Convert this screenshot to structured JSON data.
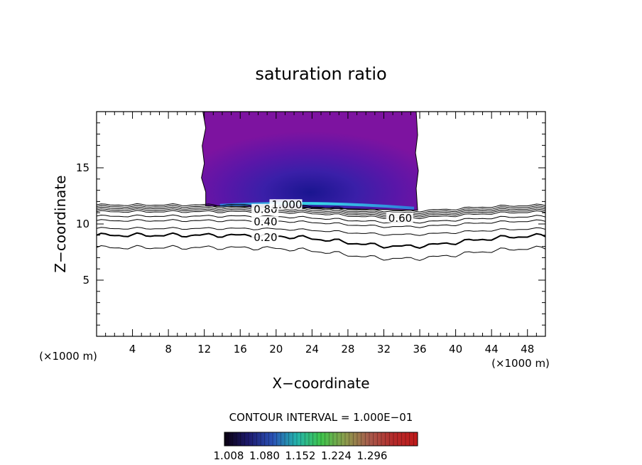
{
  "chart_data": {
    "type": "contour",
    "title": "saturation ratio",
    "xlabel": "X−coordinate",
    "ylabel": "Z−coordinate",
    "x_unit_left": "(×1000 m)",
    "x_unit_right": "(×1000 m)",
    "xlim": [
      0,
      50
    ],
    "ylim": [
      0,
      20
    ],
    "xticks": [
      4,
      8,
      12,
      16,
      20,
      24,
      28,
      32,
      36,
      40,
      44,
      48
    ],
    "yticks": [
      5,
      10,
      15
    ],
    "contour_interval_label": "CONTOUR INTERVAL = 1.000E−01",
    "line_contours": [
      {
        "label": "0.20",
        "z": 9.0,
        "label_x": 17.5
      },
      {
        "label": "0.40",
        "z": 10.3,
        "label_x": 17.5
      },
      {
        "label": "0.60",
        "z": 11.1,
        "label_x": 32.5
      },
      {
        "label": "0.80",
        "z": 11.4,
        "label_x": 17.5
      },
      {
        "label": "1.000",
        "z": 11.7,
        "label_x": 19.5
      }
    ],
    "shaded_region": {
      "x_range": [
        12,
        36
      ],
      "z_range": [
        11.6,
        20
      ],
      "value_min": 1.0,
      "value_max": 1.3
    },
    "colorbar": {
      "tick_labels": [
        "1.008",
        "1.080",
        "1.152",
        "1.224",
        "1.296"
      ],
      "colors": [
        "#0a0010",
        "#1d1a6e",
        "#2a52b6",
        "#24b4ac",
        "#3ec44c",
        "#8c9c4c",
        "#a85a4c",
        "#b42a2a",
        "#c01a1a"
      ]
    }
  }
}
